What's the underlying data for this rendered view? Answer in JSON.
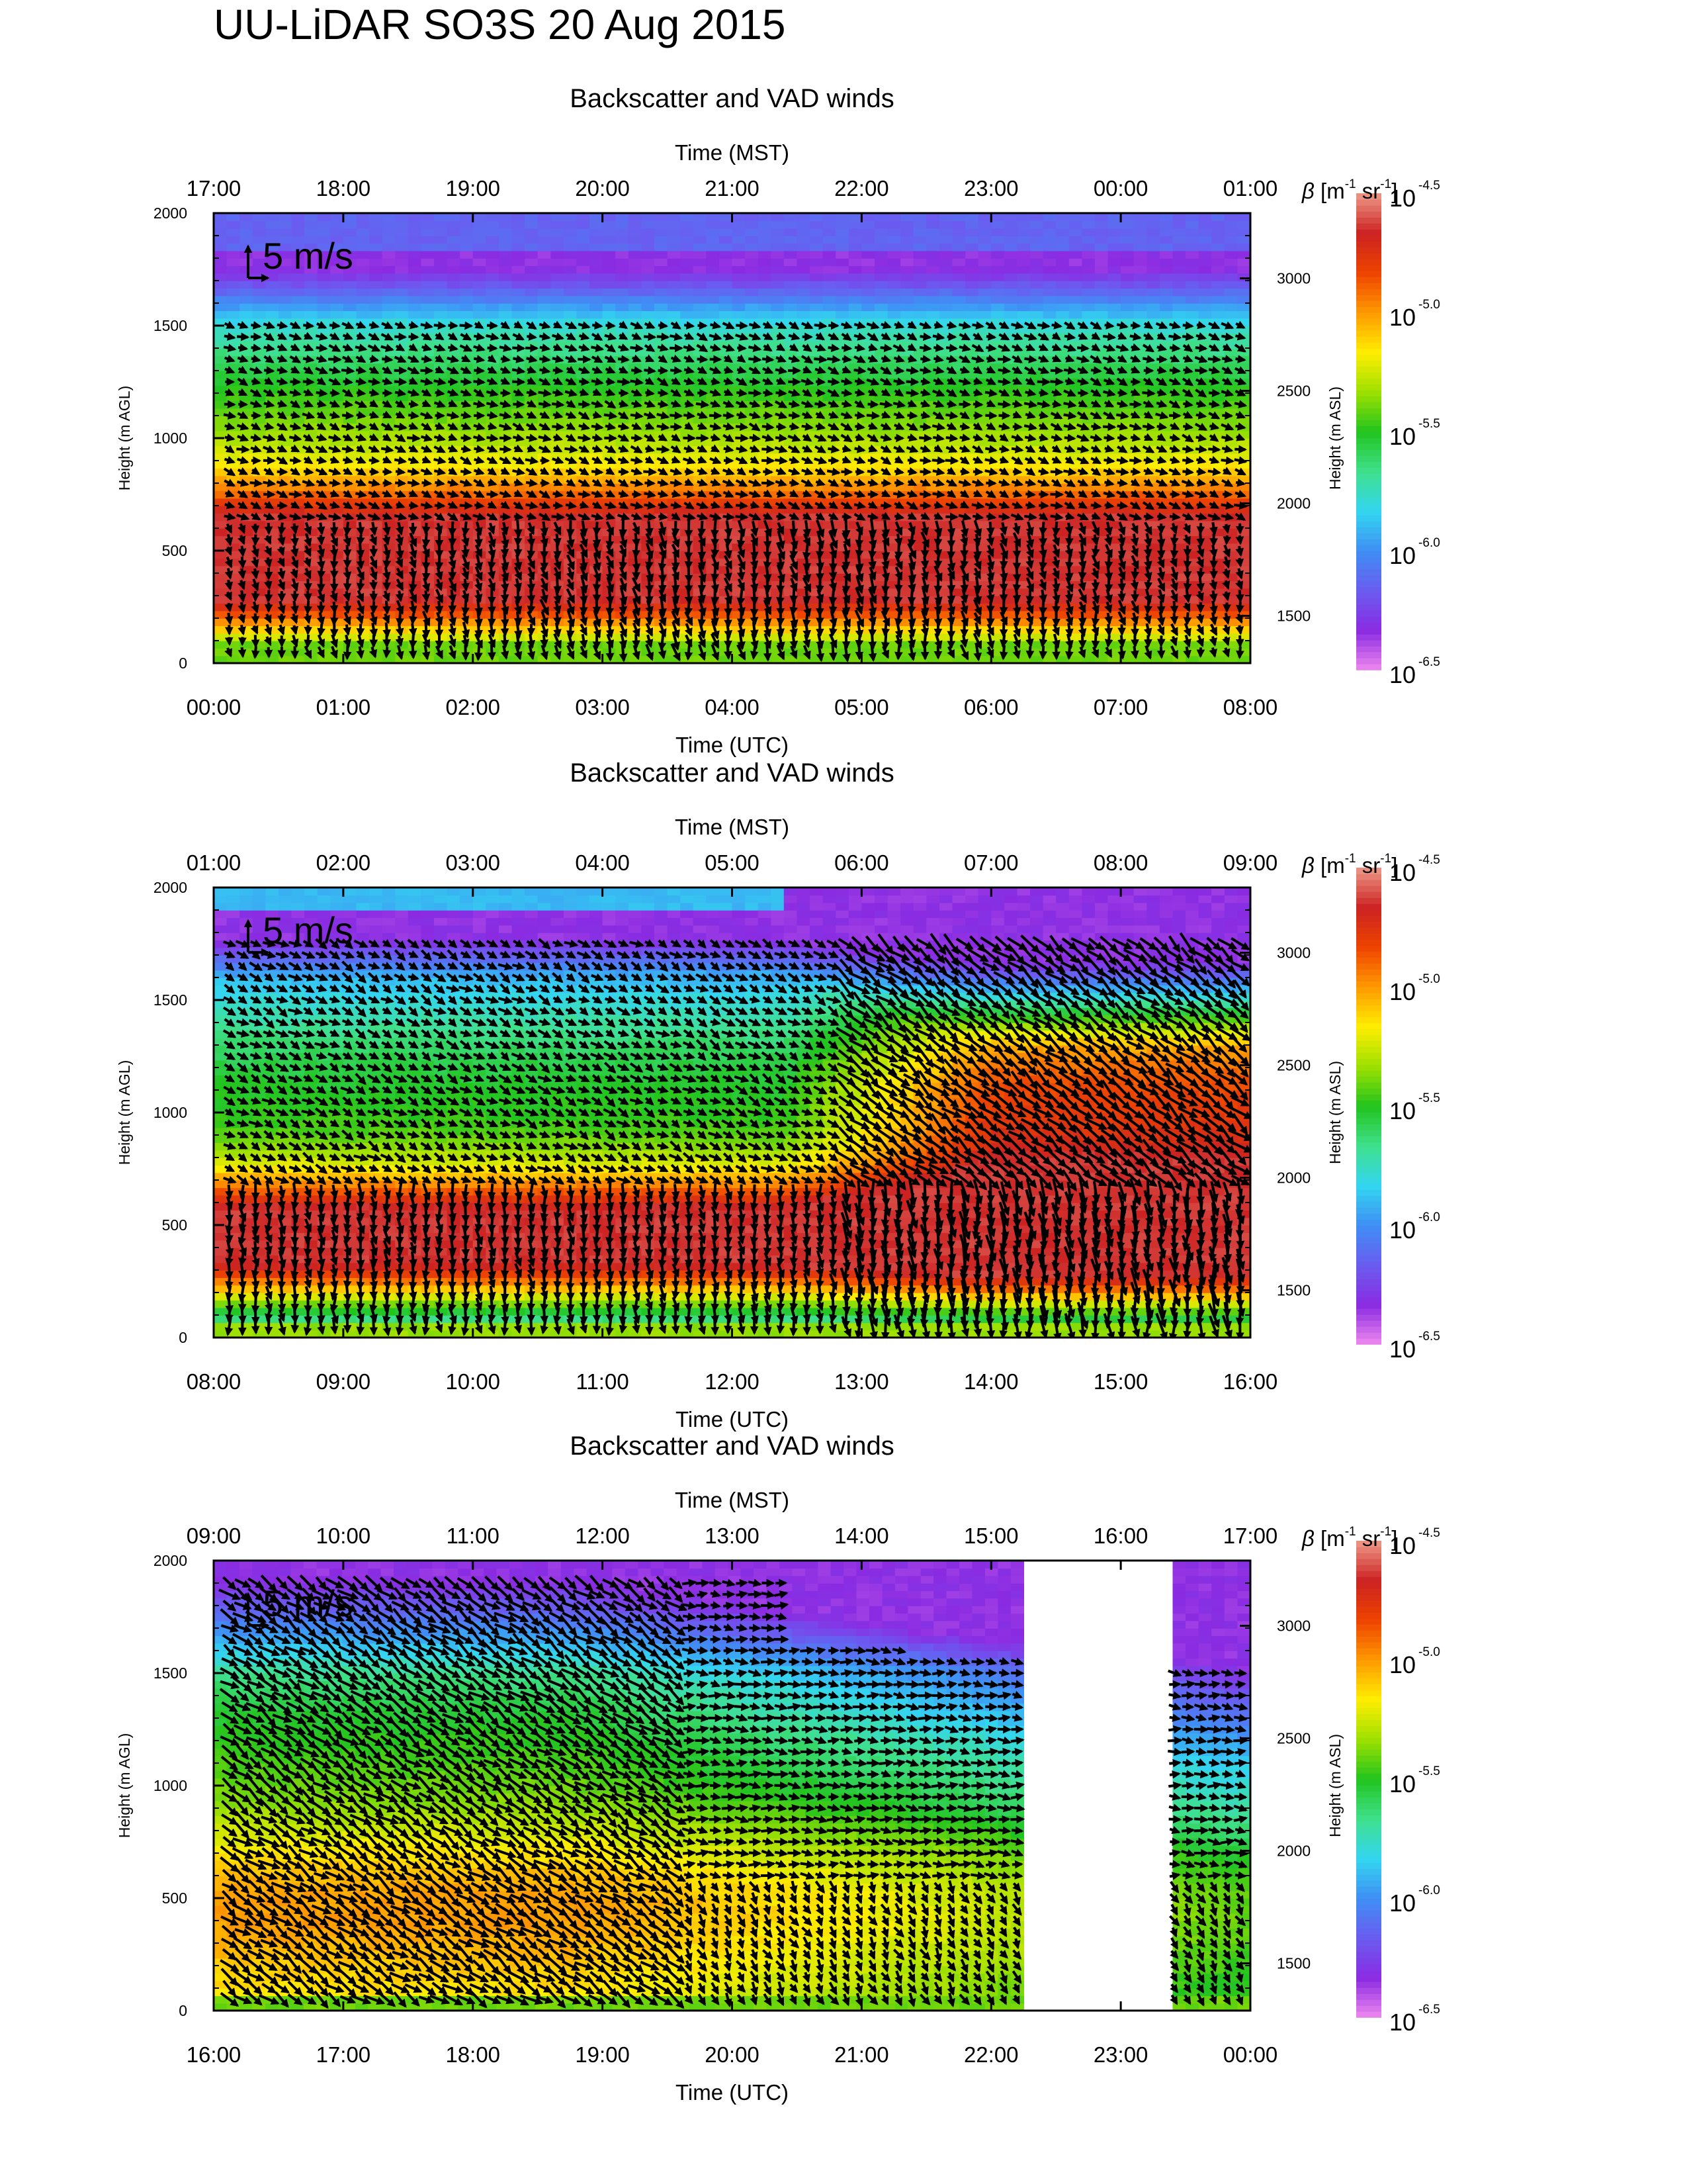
{
  "figure_title": "UU-LiDAR SO3S 20 Aug 2015",
  "colors": {
    "colormap": [
      "#ee88ee",
      "#8a2be2",
      "#6a5cf0",
      "#3f8ff5",
      "#33d6f0",
      "#3fe08c",
      "#22c41e",
      "#9ee000",
      "#ffee00",
      "#ff9900",
      "#ee4400",
      "#cc2222",
      "#ee9988"
    ],
    "arrow": "#000000"
  },
  "chart_data": [
    {
      "type": "heatmap",
      "title": "Backscatter and VAD winds",
      "top_axis_label": "Time (MST)",
      "top_ticks": [
        "17:00",
        "18:00",
        "19:00",
        "20:00",
        "21:00",
        "22:00",
        "23:00",
        "00:00",
        "01:00"
      ],
      "xlabel": "Time (UTC)",
      "x_ticks": [
        "00:00",
        "01:00",
        "02:00",
        "03:00",
        "04:00",
        "05:00",
        "06:00",
        "07:00",
        "08:00"
      ],
      "ylabel": "Height (m AGL)",
      "yticks": [
        0,
        500,
        1000,
        1500,
        2000
      ],
      "ylim": [
        0,
        2000
      ],
      "y2label": "Height (m ASL)",
      "y2ticks": [
        1500,
        2000,
        2500,
        3000
      ],
      "ground_asl": 1290,
      "colorbar": {
        "title_symbol": "β",
        "title_unit": "[m",
        "unit_exp1": "-1",
        "unit_mid": " sr",
        "unit_exp2": "-1",
        "unit_end": "]",
        "tick_base": "10",
        "tick_exponents": [
          "-4.5",
          "-5.0",
          "-5.5",
          "-6.0",
          "-6.5"
        ],
        "range_log10": [
          -6.5,
          -4.5
        ]
      },
      "scale_arrow_label": "5 m/s",
      "data_hours": [
        0,
        8
      ],
      "wind_max_height": 1500
    },
    {
      "type": "heatmap",
      "title": "Backscatter and VAD winds",
      "top_axis_label": "Time (MST)",
      "top_ticks": [
        "01:00",
        "02:00",
        "03:00",
        "04:00",
        "05:00",
        "06:00",
        "07:00",
        "08:00",
        "09:00"
      ],
      "xlabel": "Time (UTC)",
      "x_ticks": [
        "08:00",
        "09:00",
        "10:00",
        "11:00",
        "12:00",
        "13:00",
        "14:00",
        "15:00",
        "16:00"
      ],
      "ylabel": "Height (m AGL)",
      "yticks": [
        0,
        500,
        1000,
        1500,
        2000
      ],
      "ylim": [
        0,
        2000
      ],
      "y2label": "Height (m ASL)",
      "y2ticks": [
        1500,
        2000,
        2500,
        3000
      ],
      "ground_asl": 1290,
      "colorbar": {
        "title_symbol": "β",
        "title_unit": "[m",
        "unit_exp1": "-1",
        "unit_mid": " sr",
        "unit_exp2": "-1",
        "unit_end": "]",
        "tick_base": "10",
        "tick_exponents": [
          "-4.5",
          "-5.0",
          "-5.5",
          "-6.0",
          "-6.5"
        ],
        "range_log10": [
          -6.5,
          -4.5
        ]
      },
      "scale_arrow_label": "5 m/s",
      "data_hours": [
        0,
        8
      ],
      "wind_max_height": 1750
    },
    {
      "type": "heatmap",
      "title": "Backscatter and VAD winds",
      "top_axis_label": "Time (MST)",
      "top_ticks": [
        "09:00",
        "10:00",
        "11:00",
        "12:00",
        "13:00",
        "14:00",
        "15:00",
        "16:00",
        "17:00"
      ],
      "xlabel": "Time (UTC)",
      "x_ticks": [
        "16:00",
        "17:00",
        "18:00",
        "19:00",
        "20:00",
        "21:00",
        "22:00",
        "23:00",
        "00:00"
      ],
      "ylabel": "Height (m AGL)",
      "yticks": [
        0,
        500,
        1000,
        1500,
        2000
      ],
      "ylim": [
        0,
        2000
      ],
      "y2label": "Height (m ASL)",
      "y2ticks": [
        1500,
        2000,
        2500,
        3000
      ],
      "ground_asl": 1290,
      "colorbar": {
        "title_symbol": "β",
        "title_unit": "[m",
        "unit_exp1": "-1",
        "unit_mid": " sr",
        "unit_exp2": "-1",
        "unit_end": "]",
        "tick_base": "10",
        "tick_exponents": [
          "-4.5",
          "-5.0",
          "-5.5",
          "-6.0",
          "-6.5"
        ],
        "range_log10": [
          -6.5,
          -4.5
        ]
      },
      "scale_arrow_label": "5 m/s",
      "data_hours": [
        0,
        6.25
      ],
      "data_hours_2": [
        7.4,
        8
      ],
      "missing_hours": [
        6.25,
        7.4
      ],
      "wind_max_height": 1900
    }
  ]
}
